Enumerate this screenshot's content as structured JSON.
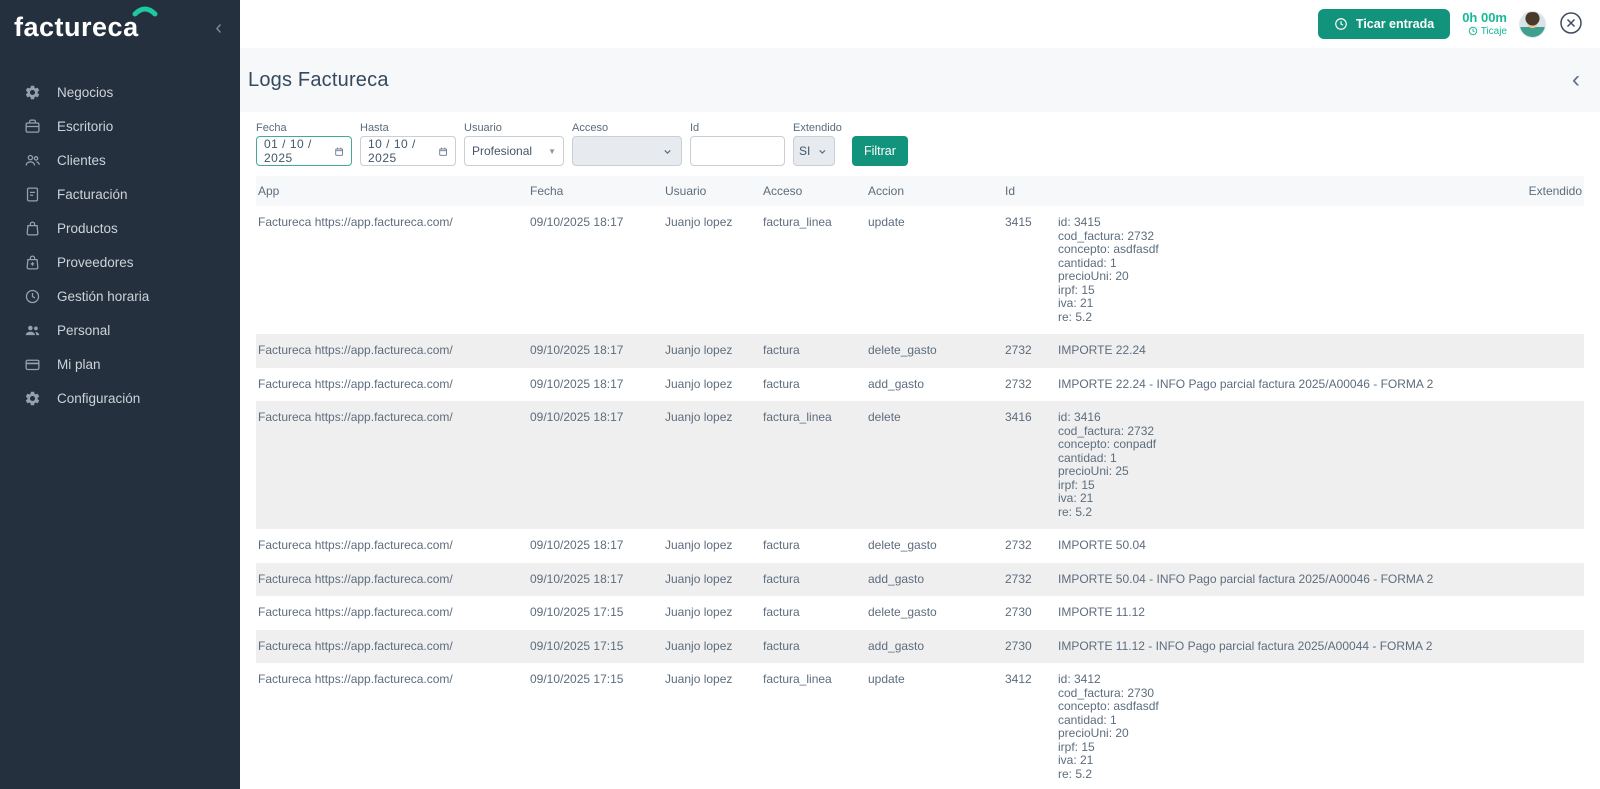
{
  "brand": {
    "logo_pre": "factur",
    "logo_e": "e",
    "logo_post": "ca",
    "logo_arc_color": "#1ec9a2",
    "accent_teal": "#12947c",
    "sidebar_bg": "#25303e"
  },
  "sidebar": {
    "items": [
      {
        "key": "negocios",
        "label": "Negocios",
        "icon": "gear-icon"
      },
      {
        "key": "escritorio",
        "label": "Escritorio",
        "icon": "briefcase-icon"
      },
      {
        "key": "clientes",
        "label": "Clientes",
        "icon": "users-outline-icon"
      },
      {
        "key": "facturacion",
        "label": "Facturación",
        "icon": "document-icon"
      },
      {
        "key": "productos",
        "label": "Productos",
        "icon": "shopping-bag-icon"
      },
      {
        "key": "proveedores",
        "label": "Proveedores",
        "icon": "bag-plus-icon"
      },
      {
        "key": "gestion-horaria",
        "label": "Gestión horaria",
        "icon": "clock-icon"
      },
      {
        "key": "personal",
        "label": "Personal",
        "icon": "people-solid-icon"
      },
      {
        "key": "mi-plan",
        "label": "Mi plan",
        "icon": "card-icon"
      },
      {
        "key": "configuracion",
        "label": "Configuración",
        "icon": "gear-icon"
      }
    ]
  },
  "header": {
    "ticar_button": "Ticar entrada",
    "timer_value": "0h 00m",
    "timer_label": "Ticaje"
  },
  "page": {
    "title": "Logs Factureca"
  },
  "filters": {
    "fecha": {
      "label": "Fecha",
      "value": "01 / 10 / 2025"
    },
    "hasta": {
      "label": "Hasta",
      "value": "10 / 10 / 2025"
    },
    "usuario": {
      "label": "Usuario",
      "value": "Profesional"
    },
    "acceso": {
      "label": "Acceso",
      "value": ""
    },
    "id": {
      "label": "Id",
      "value": ""
    },
    "extendido": {
      "label": "Extendido",
      "value": "SI"
    },
    "filtrar_label": "Filtrar"
  },
  "table": {
    "columns": [
      "App",
      "Fecha",
      "Usuario",
      "Acceso",
      "Accion",
      "Id",
      "Extendido"
    ],
    "rows": [
      {
        "app": "Factureca https://app.factureca.com/",
        "fecha": "09/10/2025 18:17",
        "usuario": "Juanjo lopez",
        "acceso": "factura_linea",
        "accion": "update",
        "id": "3415",
        "extendido": [
          "id: 3415",
          "cod_factura: 2732",
          "concepto: asdfasdf",
          "cantidad: 1",
          "precioUni: 20",
          "irpf: 15",
          "iva: 21",
          "re: 5.2"
        ]
      },
      {
        "app": "Factureca https://app.factureca.com/",
        "fecha": "09/10/2025 18:17",
        "usuario": "Juanjo lopez",
        "acceso": "factura",
        "accion": "delete_gasto",
        "id": "2732",
        "extendido": [
          "IMPORTE 22.24"
        ]
      },
      {
        "app": "Factureca https://app.factureca.com/",
        "fecha": "09/10/2025 18:17",
        "usuario": "Juanjo lopez",
        "acceso": "factura",
        "accion": "add_gasto",
        "id": "2732",
        "extendido": [
          "IMPORTE 22.24 - INFO Pago parcial factura 2025/A00046 - FORMA 2"
        ]
      },
      {
        "app": "Factureca https://app.factureca.com/",
        "fecha": "09/10/2025 18:17",
        "usuario": "Juanjo lopez",
        "acceso": "factura_linea",
        "accion": "delete",
        "id": "3416",
        "extendido": [
          "id: 3416",
          "cod_factura: 2732",
          "concepto: conpadf",
          "cantidad: 1",
          "precioUni: 25",
          "irpf: 15",
          "iva: 21",
          "re: 5.2"
        ]
      },
      {
        "app": "Factureca https://app.factureca.com/",
        "fecha": "09/10/2025 18:17",
        "usuario": "Juanjo lopez",
        "acceso": "factura",
        "accion": "delete_gasto",
        "id": "2732",
        "extendido": [
          "IMPORTE 50.04"
        ]
      },
      {
        "app": "Factureca https://app.factureca.com/",
        "fecha": "09/10/2025 18:17",
        "usuario": "Juanjo lopez",
        "acceso": "factura",
        "accion": "add_gasto",
        "id": "2732",
        "extendido": [
          "IMPORTE 50.04 - INFO Pago parcial factura 2025/A00046 - FORMA 2"
        ]
      },
      {
        "app": "Factureca https://app.factureca.com/",
        "fecha": "09/10/2025 17:15",
        "usuario": "Juanjo lopez",
        "acceso": "factura",
        "accion": "delete_gasto",
        "id": "2730",
        "extendido": [
          "IMPORTE 11.12"
        ]
      },
      {
        "app": "Factureca https://app.factureca.com/",
        "fecha": "09/10/2025 17:15",
        "usuario": "Juanjo lopez",
        "acceso": "factura",
        "accion": "add_gasto",
        "id": "2730",
        "extendido": [
          "IMPORTE 11.12 - INFO Pago parcial factura 2025/A00044 - FORMA 2"
        ]
      },
      {
        "app": "Factureca https://app.factureca.com/",
        "fecha": "09/10/2025 17:15",
        "usuario": "Juanjo lopez",
        "acceso": "factura_linea",
        "accion": "update",
        "id": "3412",
        "extendido": [
          "id: 3412",
          "cod_factura: 2730",
          "concepto: asdfasdf",
          "cantidad: 1",
          "precioUni: 20",
          "irpf: 15",
          "iva: 21",
          "re: 5.2"
        ]
      }
    ]
  }
}
